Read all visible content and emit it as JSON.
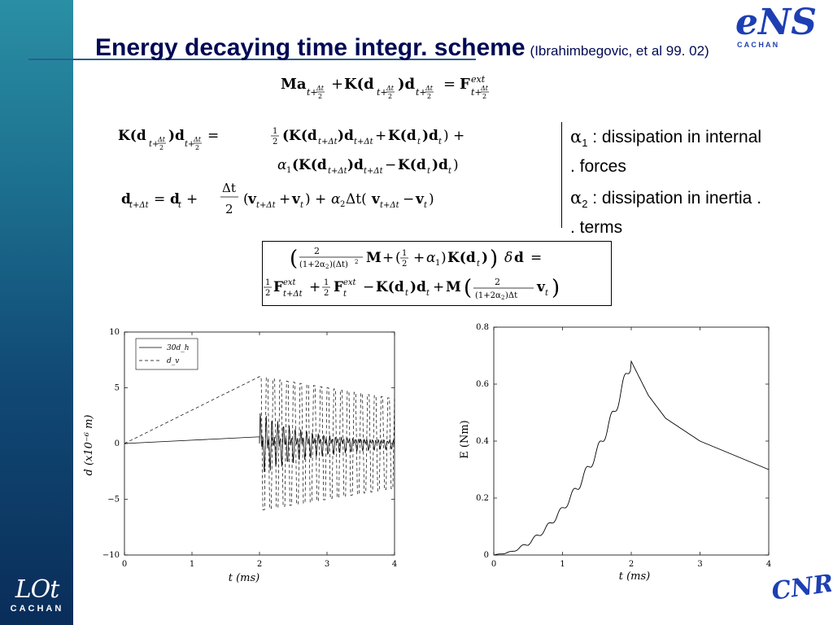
{
  "slide": {
    "title": "Energy decaying time integr. scheme",
    "subtitle": "(Ibrahimbegovic, et al 99. 02)"
  },
  "logos": {
    "ens": {
      "text": "eNS",
      "tagline": "C A C H A N"
    },
    "university": {
      "text": "LOt",
      "tagline": "CACHAN"
    },
    "cnrs": {
      "text": "CNRS"
    }
  },
  "equations": {
    "momentum": "Ma_{t+Δt/2} + K(d_{t+Δt/2}) d_{t+Δt/2} = F^{ext}_{t+Δt/2}",
    "internal_force_line1": "K(d_{t+Δt/2}) d_{t+Δt/2} = ½(K(d_{t+Δt})d_{t+Δt} + K(d_t)d_t) +",
    "internal_force_line2": "α₁(K(d_{t+Δt})d_{t+Δt} − K(d_t)d_t)",
    "displacement_update": "d_{t+Δt} = d_t + Δt/2 (v_{t+Δt} + v_t) + α₂Δt(v_{t+Δt} − v_t)",
    "boxed_line1": "(2/((1+2α₂)(Δt)²) M + (½ + α₁)K(d_t)) δd =",
    "boxed_line2": "½F^{ext}_{t+Δt} + ½F^{ext}_t − K(d_t)d_t + M(2/((1+2α₂)Δt) v_t)"
  },
  "notes": [
    {
      "symbol": "α",
      "sub": "1",
      "line1": " : dissipation in internal",
      "line2": ".      forces"
    },
    {
      "symbol": "α",
      "sub": "2",
      "line1": " : dissipation in inertia .",
      "line2": ".      terms"
    }
  ],
  "chart_data": [
    {
      "type": "line",
      "xlabel": "t (ms)",
      "ylabel": "d (x10⁻⁶ m)",
      "xlim": [
        0,
        4
      ],
      "ylim": [
        -10,
        10
      ],
      "xticks": [
        "0",
        "1",
        "2",
        "3",
        "4"
      ],
      "yticks": [
        "10",
        "5",
        "0",
        "−5",
        "−10"
      ],
      "legend_position": "top-left",
      "series": [
        {
          "name": "30d_h",
          "style": "solid",
          "x": [
            0,
            1,
            2
          ],
          "values": [
            0,
            0.3,
            0.6
          ],
          "after_t2": "oscillation about 0, amplitude ≈3 decaying to ≈0.5 by t=4"
        },
        {
          "name": "d_v",
          "style": "dashed",
          "x": [
            0,
            1,
            2
          ],
          "values": [
            0,
            3,
            6
          ],
          "after_t2": "oscillation between ≈+6 and ≈−6, amplitude decaying to ≈4 by t=4"
        }
      ]
    },
    {
      "type": "line",
      "xlabel": "t (ms)",
      "ylabel": "E (Nm)",
      "xlim": [
        0,
        4
      ],
      "ylim": [
        0,
        0.8
      ],
      "xticks": [
        "0",
        "1",
        "2",
        "3",
        "4"
      ],
      "yticks": [
        "0.8",
        "0.6",
        "0.4",
        "0.2",
        "0"
      ],
      "series": [
        {
          "x": [
            0,
            0.25,
            0.5,
            0.75,
            1.0,
            1.25,
            1.5,
            1.75,
            2.0,
            2.25,
            2.5,
            3.0,
            3.5,
            4.0
          ],
          "values": [
            0,
            0.01,
            0.04,
            0.09,
            0.16,
            0.25,
            0.36,
            0.5,
            0.68,
            0.56,
            0.48,
            0.4,
            0.35,
            0.3
          ]
        }
      ]
    }
  ]
}
